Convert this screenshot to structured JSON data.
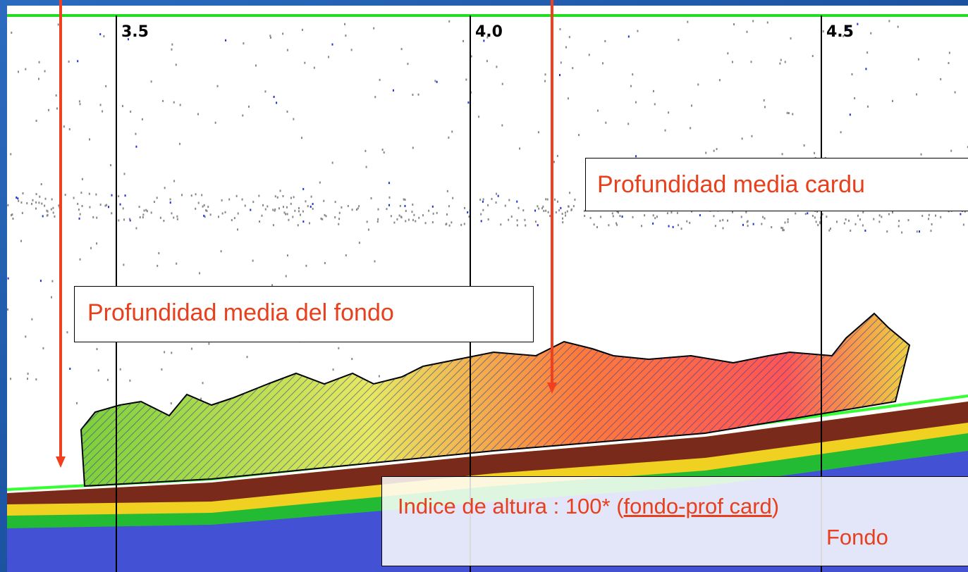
{
  "axis_labels": [
    "3.5",
    "4.0",
    "4.5"
  ],
  "annotations": {
    "bottom_depth": "Profundidad media del fondo",
    "school_depth": "Profundidad media cardu",
    "height_index": {
      "prefix": "Indice de altura : 100* (",
      "numerator": "fondo-prof card",
      "suffix": ")",
      "denominator": "Fondo"
    }
  }
}
